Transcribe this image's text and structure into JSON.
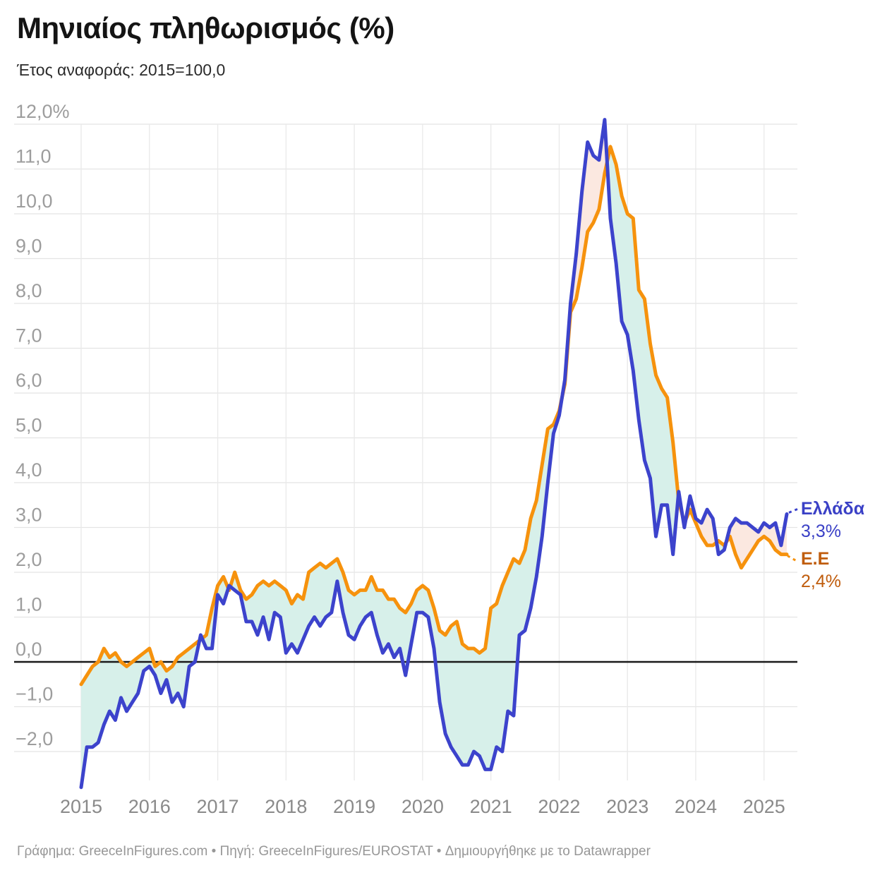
{
  "header": {
    "title": "Μηνιαίος πληθωρισμός (%)",
    "subtitle": "Έτος αναφοράς: 2015=100,0"
  },
  "legend": {
    "greece_label": "Ελλάδα",
    "greece_value": "3,3%",
    "eu_label": "Ε.Ε",
    "eu_value": "2,4%",
    "greece_text_color": "#3a40c6",
    "eu_text_color": "#c05d0e"
  },
  "footer": {
    "text": "Γράφημα: GreeceInFigures.com • Πηγή: GreeceInFigures/EUROSTAT • Δημιουργήθηκε με το Datawrapper"
  },
  "chart_data": {
    "type": "line",
    "title": "Μηνιαίος πληθωρισμός (%)",
    "subtitle": "Έτος αναφοράς: 2015=100,0",
    "frequency": "monthly",
    "x_start": "2015-01",
    "x_end": "2025-05",
    "x_tick_labels": [
      "2015",
      "2016",
      "2017",
      "2018",
      "2019",
      "2020",
      "2021",
      "2022",
      "2023",
      "2024",
      "2025"
    ],
    "y_ticks": [
      {
        "v": 12,
        "label": "12,0%"
      },
      {
        "v": 11,
        "label": "11,0"
      },
      {
        "v": 10,
        "label": "10,0"
      },
      {
        "v": 9,
        "label": "9,0"
      },
      {
        "v": 8,
        "label": "8,0"
      },
      {
        "v": 7,
        "label": "7,0"
      },
      {
        "v": 6,
        "label": "6,0"
      },
      {
        "v": 5,
        "label": "5,0"
      },
      {
        "v": 4,
        "label": "4,0"
      },
      {
        "v": 3,
        "label": "3,0"
      },
      {
        "v": 2,
        "label": "2,0"
      },
      {
        "v": 1,
        "label": "1,0"
      },
      {
        "v": 0,
        "label": "0,0"
      },
      {
        "v": -1,
        "label": "−1,0"
      },
      {
        "v": -2,
        "label": "−2,0"
      }
    ],
    "ylim": [
      -2.9,
      12.2
    ],
    "grid": true,
    "grid_color": "#e4e4e4",
    "zero_line_color": "#1a1a1a",
    "fill_between": {
      "greece_above_color": "#fbe8e0",
      "eu_above_color": "#d7f0ea"
    },
    "series": [
      {
        "name": "Ελλάδα",
        "color": "#3c43cc",
        "values": [
          -2.8,
          -1.9,
          -1.9,
          -1.8,
          -1.4,
          -1.1,
          -1.3,
          -0.8,
          -1.1,
          -0.9,
          -0.7,
          -0.2,
          -0.1,
          -0.3,
          -0.7,
          -0.4,
          -0.9,
          -0.7,
          -1.0,
          -0.1,
          0.0,
          0.6,
          0.3,
          0.3,
          1.5,
          1.3,
          1.7,
          1.6,
          1.5,
          0.9,
          0.9,
          0.6,
          1.0,
          0.5,
          1.1,
          1.0,
          0.2,
          0.4,
          0.2,
          0.5,
          0.8,
          1.0,
          0.8,
          1.0,
          1.1,
          1.8,
          1.1,
          0.6,
          0.5,
          0.8,
          1.0,
          1.1,
          0.6,
          0.2,
          0.4,
          0.1,
          0.3,
          -0.3,
          0.4,
          1.1,
          1.1,
          1.0,
          0.3,
          -0.9,
          -1.6,
          -1.9,
          -2.1,
          -2.3,
          -2.3,
          -2.0,
          -2.1,
          -2.4,
          -2.4,
          -1.9,
          -2.0,
          -1.1,
          -1.2,
          0.6,
          0.7,
          1.2,
          1.9,
          2.8,
          4.0,
          5.1,
          5.5,
          6.3,
          8.0,
          9.1,
          10.5,
          11.6,
          11.3,
          11.2,
          12.1,
          9.9,
          8.9,
          7.6,
          7.3,
          6.5,
          5.4,
          4.5,
          4.1,
          2.8,
          3.5,
          3.5,
          2.4,
          3.8,
          3.0,
          3.7,
          3.2,
          3.1,
          3.4,
          3.2,
          2.4,
          2.5,
          3.0,
          3.2,
          3.1,
          3.1,
          3.0,
          2.9,
          3.1,
          3.0,
          3.1,
          2.6,
          3.3
        ]
      },
      {
        "name": "Ε.Ε",
        "color": "#f6920d",
        "values": [
          -0.5,
          -0.3,
          -0.1,
          0.0,
          0.3,
          0.1,
          0.2,
          0.0,
          -0.1,
          0.0,
          0.1,
          0.2,
          0.3,
          -0.1,
          0.0,
          -0.2,
          -0.1,
          0.1,
          0.2,
          0.3,
          0.4,
          0.5,
          0.6,
          1.2,
          1.7,
          1.9,
          1.6,
          2.0,
          1.6,
          1.4,
          1.5,
          1.7,
          1.8,
          1.7,
          1.8,
          1.7,
          1.6,
          1.3,
          1.5,
          1.4,
          2.0,
          2.1,
          2.2,
          2.1,
          2.2,
          2.3,
          2.0,
          1.6,
          1.5,
          1.6,
          1.6,
          1.9,
          1.6,
          1.6,
          1.4,
          1.4,
          1.2,
          1.1,
          1.3,
          1.6,
          1.7,
          1.6,
          1.2,
          0.7,
          0.6,
          0.8,
          0.9,
          0.4,
          0.3,
          0.3,
          0.2,
          0.3,
          1.2,
          1.3,
          1.7,
          2.0,
          2.3,
          2.2,
          2.5,
          3.2,
          3.6,
          4.4,
          5.2,
          5.3,
          5.6,
          6.2,
          7.8,
          8.1,
          8.8,
          9.6,
          9.8,
          10.1,
          10.9,
          11.5,
          11.1,
          10.4,
          10.0,
          9.9,
          8.3,
          8.1,
          7.1,
          6.4,
          6.1,
          5.9,
          4.9,
          3.6,
          3.1,
          3.4,
          3.1,
          2.8,
          2.6,
          2.6,
          2.7,
          2.6,
          2.8,
          2.4,
          2.1,
          2.3,
          2.5,
          2.7,
          2.8,
          2.7,
          2.5,
          2.4,
          2.4
        ]
      }
    ],
    "end_labels": {
      "greece": "Ελλάδα 3,3%",
      "eu": "Ε.Ε 2,4%"
    }
  }
}
